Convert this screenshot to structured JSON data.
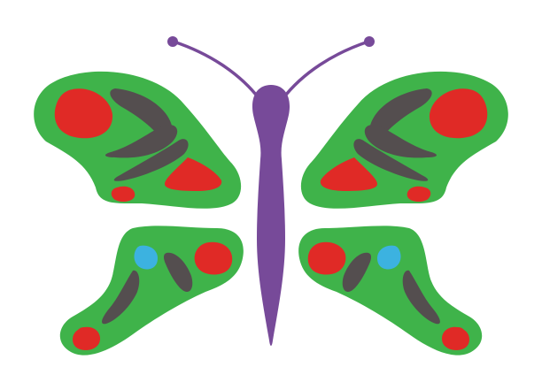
{
  "image": {
    "subject": "butterfly-illustration",
    "background": "#ffffff"
  },
  "colors": {
    "wing": "#3fb34a",
    "spot_red": "#e02a26",
    "spot_dark": "#544e4f",
    "spot_blue": "#3cb2e0",
    "body": "#774a99"
  }
}
